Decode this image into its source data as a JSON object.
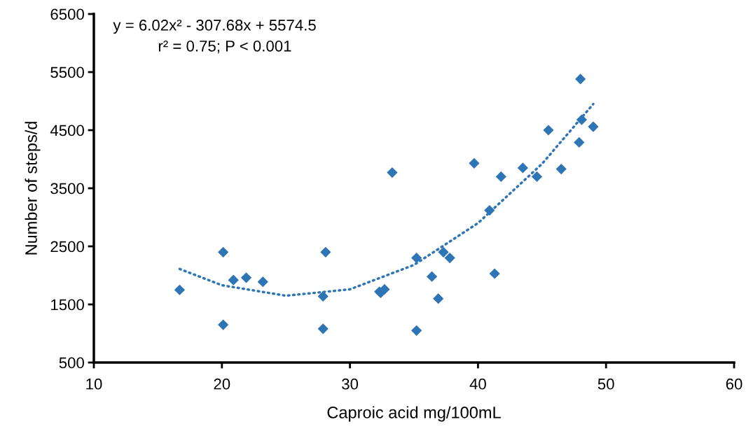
{
  "chart_data": {
    "type": "scatter",
    "xlabel": "Caproic acid mg/100mL",
    "ylabel": "Number of steps/d",
    "annotations": [
      "y = 6.02x² - 307.68x + 5574.5",
      "r² = 0.75; P < 0.001"
    ],
    "xlim": [
      10,
      60
    ],
    "xticks": [
      10,
      20,
      30,
      40,
      50,
      60
    ],
    "ylim": [
      500,
      6500
    ],
    "yticks": [
      500,
      1500,
      2500,
      3500,
      4500,
      5500,
      6500
    ],
    "grid": false,
    "marker": "diamond",
    "series": [
      {
        "color": "#2e75b6",
        "x": [
          16.7,
          20.1,
          20.1,
          20.9,
          21.9,
          23.2,
          27.9,
          27.9,
          28.1,
          32.3,
          32.4,
          32.7,
          33.3,
          35.2,
          35.2,
          36.4,
          36.9,
          37.3,
          37.8,
          39.7,
          40.9,
          41.3,
          41.8,
          43.5,
          44.6,
          45.5,
          46.5,
          47.9,
          48.0,
          48.1,
          49.0
        ],
        "values": [
          1750,
          1150,
          2400,
          1920,
          1960,
          1890,
          1640,
          1080,
          2400,
          1720,
          1700,
          1760,
          3770,
          2300,
          1050,
          1980,
          1600,
          2400,
          2300,
          3930,
          3120,
          2030,
          3700,
          3850,
          3700,
          4500,
          3830,
          4290,
          5380,
          4680,
          4560
        ]
      },
      {
        "type": "line",
        "color": "#2e75b6",
        "line_style": "dotted",
        "marker": "none",
        "x": [
          16.7,
          20,
          25,
          30,
          35,
          40,
          45,
          49
        ],
        "values": [
          2110,
          1830,
          1650,
          1760,
          2180,
          2900,
          3920,
          4950
        ]
      }
    ]
  }
}
